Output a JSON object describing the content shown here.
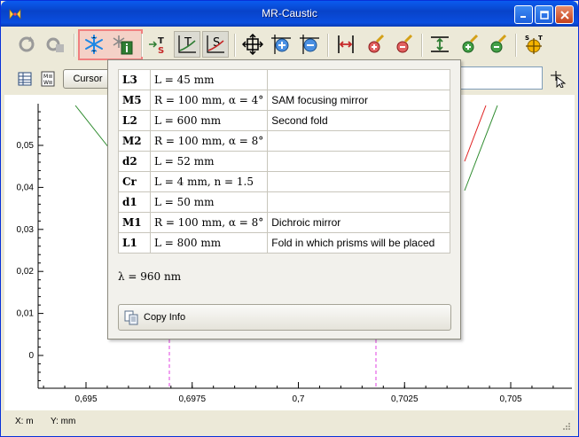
{
  "window": {
    "title": "MR-Caustic"
  },
  "toolbar": {
    "icons": [
      "reload-icon",
      "reload-secondary-icon",
      "freeze-icon",
      "info-icon",
      "ts-icon",
      "t-axis-icon",
      "s-axis-icon",
      "zoom-fit-icon",
      "zoom-in-icon",
      "zoom-out-icon",
      "h-fit-icon",
      "h-zoom-in-icon",
      "h-zoom-out-icon",
      "v-fit-icon",
      "v-zoom-in-icon",
      "v-zoom-out-icon",
      "target-icon"
    ]
  },
  "toolbar2": {
    "cursor_label": "Cursor"
  },
  "info": {
    "rows": [
      {
        "name": "L3",
        "params": "L = 45 mm",
        "desc": ""
      },
      {
        "name": "M5",
        "params": "R = 100 mm, α = 4°",
        "desc": "SAM focusing mirror"
      },
      {
        "name": "L2",
        "params": "L = 600 mm",
        "desc": "Second fold"
      },
      {
        "name": "M2",
        "params": "R = 100 mm, α = 8°",
        "desc": ""
      },
      {
        "name": "d2",
        "params": "L = 52 mm",
        "desc": ""
      },
      {
        "name": "Cr",
        "params": "L = 4 mm, n = 1.5",
        "desc": ""
      },
      {
        "name": "d1",
        "params": "L = 50 mm",
        "desc": ""
      },
      {
        "name": "M1",
        "params": "R = 100 mm, α = 8°",
        "desc": "Dichroic mirror"
      },
      {
        "name": "L1",
        "params": "L = 800 mm",
        "desc": "Fold in which prisms will be placed"
      }
    ],
    "lambda": "λ = 960 nm",
    "copy_label": "Copy Info"
  },
  "plot": {
    "y_ticks": [
      {
        "value": 0.05,
        "label": "0,05"
      },
      {
        "value": 0.04,
        "label": "0,04"
      },
      {
        "value": 0.03,
        "label": "0,03"
      },
      {
        "value": 0.02,
        "label": "0,02"
      },
      {
        "value": 0.01,
        "label": "0,01"
      },
      {
        "value": 0,
        "label": "0"
      }
    ],
    "x_ticks": [
      {
        "value": 0.695,
        "label": "0,695"
      },
      {
        "value": 0.6975,
        "label": "0,6975"
      },
      {
        "value": 0.7,
        "label": "0,7"
      },
      {
        "value": 0.7025,
        "label": "0,7025"
      },
      {
        "value": 0.705,
        "label": "0,705"
      }
    ],
    "colors": {
      "green": "#2e8b2e",
      "red": "#e02020",
      "marker": "#e040e0"
    }
  },
  "status": {
    "x_label": "X: m",
    "y_label": "Y: mm"
  }
}
